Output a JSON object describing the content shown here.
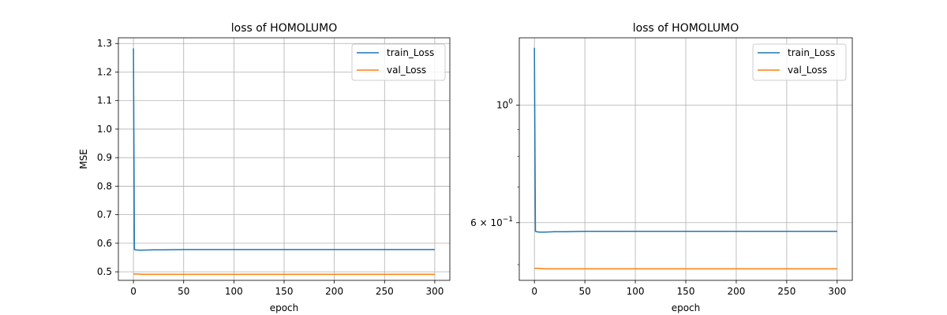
{
  "chart_data": [
    {
      "type": "line",
      "title": "loss of HOMOLUMO",
      "xlabel": "epoch",
      "ylabel": "MSE",
      "xlim": [
        -15,
        315
      ],
      "ylim": [
        0.47,
        1.32
      ],
      "xticks": [
        0,
        50,
        100,
        150,
        200,
        250,
        300
      ],
      "xtick_labels": [
        "0",
        "50",
        "100",
        "150",
        "200",
        "250",
        "300"
      ],
      "yscale": "linear",
      "yticks": [
        0.5,
        0.6,
        0.7,
        0.8,
        0.9,
        1.0,
        1.1,
        1.2,
        1.3
      ],
      "ytick_labels": [
        "0.5",
        "0.6",
        "0.7",
        "0.8",
        "0.9",
        "1.0",
        "1.1",
        "1.2",
        "1.3"
      ],
      "grid": true,
      "legend_position": "top-right",
      "series": [
        {
          "name": "train_Loss",
          "color": "#1f77b4",
          "x": [
            0,
            1,
            2,
            5,
            10,
            20,
            30,
            50,
            100,
            150,
            200,
            250,
            300
          ],
          "y": [
            1.283,
            0.578,
            0.577,
            0.576,
            0.576,
            0.577,
            0.577,
            0.578,
            0.578,
            0.578,
            0.578,
            0.578,
            0.578
          ]
        },
        {
          "name": "val_Loss",
          "color": "#ff7f0e",
          "x": [
            0,
            5,
            10,
            20,
            30,
            50,
            100,
            150,
            200,
            250,
            300
          ],
          "y": [
            0.492,
            0.492,
            0.491,
            0.491,
            0.491,
            0.491,
            0.491,
            0.491,
            0.491,
            0.491,
            0.491
          ]
        }
      ]
    },
    {
      "type": "line",
      "title": "loss of HOMOLUMO",
      "xlabel": "epoch",
      "ylabel": "",
      "xlim": [
        -15,
        315
      ],
      "ylim": [
        0.467,
        1.34
      ],
      "xticks": [
        0,
        50,
        100,
        150,
        200,
        250,
        300
      ],
      "xtick_labels": [
        "0",
        "50",
        "100",
        "150",
        "200",
        "250",
        "300"
      ],
      "yscale": "log",
      "yticks": [
        1.0,
        0.6
      ],
      "ytick_labels": [
        "1",
        "6 × 10"
      ],
      "ytick_exponents": [
        "0",
        "−1"
      ],
      "minor_yticks": [
        0.5,
        0.7,
        0.8,
        0.9
      ],
      "grid": true,
      "legend_position": "top-right",
      "series": [
        {
          "name": "train_Loss",
          "color": "#1f77b4",
          "x": [
            0,
            1,
            2,
            5,
            10,
            20,
            30,
            50,
            100,
            150,
            200,
            250,
            300
          ],
          "y": [
            1.283,
            0.578,
            0.577,
            0.576,
            0.576,
            0.577,
            0.577,
            0.578,
            0.578,
            0.578,
            0.578,
            0.578,
            0.578
          ]
        },
        {
          "name": "val_Loss",
          "color": "#ff7f0e",
          "x": [
            0,
            5,
            10,
            20,
            30,
            50,
            100,
            150,
            200,
            250,
            300
          ],
          "y": [
            0.492,
            0.492,
            0.491,
            0.491,
            0.491,
            0.491,
            0.491,
            0.491,
            0.491,
            0.491,
            0.491
          ]
        }
      ]
    }
  ]
}
